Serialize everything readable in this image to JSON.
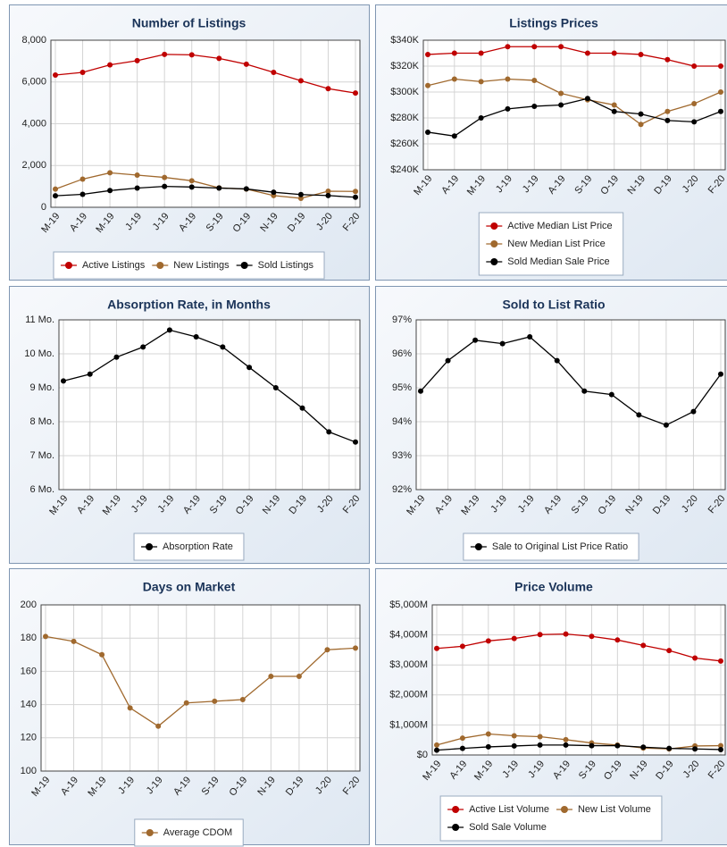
{
  "chart_data": [
    {
      "type": "line",
      "title": "Number of Listings",
      "categories": [
        "M-19",
        "A-19",
        "M-19",
        "J-19",
        "J-19",
        "A-19",
        "S-19",
        "O-19",
        "N-19",
        "D-19",
        "J-20",
        "F-20"
      ],
      "series": [
        {
          "name": "Active Listings",
          "color": "#c00000",
          "values": [
            6330,
            6460,
            6820,
            7020,
            7320,
            7300,
            7130,
            6850,
            6460,
            6060,
            5680,
            5470
          ]
        },
        {
          "name": "New Listings",
          "color": "#a0692e",
          "values": [
            870,
            1350,
            1650,
            1540,
            1430,
            1270,
            930,
            870,
            560,
            430,
            770,
            760
          ]
        },
        {
          "name": "Sold Listings",
          "color": "#000000",
          "values": [
            550,
            620,
            800,
            920,
            1000,
            970,
            920,
            880,
            720,
            610,
            560,
            480
          ]
        }
      ],
      "ylim": [
        0,
        8000
      ],
      "yticks": [
        0,
        {
          "value": 2000,
          "label": "2,000"
        },
        {
          "value": 4000,
          "label": "4,000"
        },
        {
          "value": 6000,
          "label": "6,000"
        },
        {
          "value": 8000,
          "label": "8,000"
        }
      ],
      "grid": true
    },
    {
      "type": "line",
      "title": "Listings Prices",
      "categories": [
        "M-19",
        "A-19",
        "M-19",
        "J-19",
        "J-19",
        "A-19",
        "S-19",
        "O-19",
        "N-19",
        "D-19",
        "J-20",
        "F-20"
      ],
      "series": [
        {
          "name": "Active Median List Price",
          "color": "#c00000",
          "values": [
            329000,
            330000,
            330000,
            335000,
            335000,
            335000,
            330000,
            330000,
            329000,
            325000,
            320000,
            320000
          ]
        },
        {
          "name": "New Median List Price",
          "color": "#a0692e",
          "values": [
            305000,
            310000,
            308000,
            310000,
            309000,
            299000,
            294000,
            290000,
            275000,
            285000,
            291000,
            300000
          ]
        },
        {
          "name": "Sold Median Sale Price",
          "color": "#000000",
          "values": [
            269000,
            266000,
            280000,
            287000,
            289000,
            290000,
            295000,
            285000,
            283000,
            278000,
            277000,
            285000
          ]
        }
      ],
      "ylim": [
        240000,
        340000
      ],
      "yticks": [
        {
          "value": 240000,
          "label": "$240K"
        },
        {
          "value": 260000,
          "label": "$260K"
        },
        {
          "value": 280000,
          "label": "$280K"
        },
        {
          "value": 300000,
          "label": "$300K"
        },
        {
          "value": 320000,
          "label": "$320K"
        },
        {
          "value": 340000,
          "label": "$340K"
        }
      ],
      "grid": true
    },
    {
      "type": "line",
      "title": "Absorption Rate, in Months",
      "categories": [
        "M-19",
        "A-19",
        "M-19",
        "J-19",
        "J-19",
        "A-19",
        "S-19",
        "O-19",
        "N-19",
        "D-19",
        "J-20",
        "F-20"
      ],
      "series": [
        {
          "name": "Absorption Rate",
          "color": "#000000",
          "values": [
            9.2,
            9.4,
            9.9,
            10.2,
            10.7,
            10.5,
            10.2,
            9.6,
            9.0,
            8.4,
            7.7,
            7.4
          ]
        }
      ],
      "ylim": [
        6,
        11
      ],
      "yticks": [
        {
          "value": 6,
          "label": "6 Mo."
        },
        {
          "value": 7,
          "label": "7 Mo."
        },
        {
          "value": 8,
          "label": "8 Mo."
        },
        {
          "value": 9,
          "label": "9 Mo."
        },
        {
          "value": 10,
          "label": "10 Mo."
        },
        {
          "value": 11,
          "label": "11 Mo."
        }
      ],
      "grid": true
    },
    {
      "type": "line",
      "title": "Sold to List Ratio",
      "categories": [
        "M-19",
        "A-19",
        "M-19",
        "J-19",
        "J-19",
        "A-19",
        "S-19",
        "O-19",
        "N-19",
        "D-19",
        "J-20",
        "F-20"
      ],
      "series": [
        {
          "name": "Sale to Original List Price Ratio",
          "color": "#000000",
          "values": [
            94.9,
            95.8,
            96.4,
            96.3,
            96.5,
            95.8,
            94.9,
            94.8,
            94.2,
            93.9,
            94.3,
            95.4
          ]
        }
      ],
      "ylim": [
        92,
        97
      ],
      "yticks": [
        {
          "value": 92,
          "label": "92%"
        },
        {
          "value": 93,
          "label": "93%"
        },
        {
          "value": 94,
          "label": "94%"
        },
        {
          "value": 95,
          "label": "95%"
        },
        {
          "value": 96,
          "label": "96%"
        },
        {
          "value": 97,
          "label": "97%"
        }
      ],
      "grid": true
    },
    {
      "type": "line",
      "title": "Days on Market",
      "categories": [
        "M-19",
        "A-19",
        "M-19",
        "J-19",
        "J-19",
        "A-19",
        "S-19",
        "O-19",
        "N-19",
        "D-19",
        "J-20",
        "F-20"
      ],
      "series": [
        {
          "name": "Average CDOM",
          "color": "#a0692e",
          "values": [
            181,
            178,
            170,
            138,
            127,
            141,
            142,
            143,
            157,
            157,
            173,
            174
          ]
        }
      ],
      "ylim": [
        100,
        200
      ],
      "yticks": [
        100,
        120,
        140,
        160,
        180,
        200
      ],
      "grid": true
    },
    {
      "type": "line",
      "title": "Price Volume",
      "categories": [
        "M-19",
        "A-19",
        "M-19",
        "J-19",
        "J-19",
        "A-19",
        "S-19",
        "O-19",
        "N-19",
        "D-19",
        "J-20",
        "F-20"
      ],
      "series": [
        {
          "name": "Active List Volume",
          "color": "#c00000",
          "values": [
            3550,
            3620,
            3800,
            3880,
            4010,
            4030,
            3950,
            3830,
            3650,
            3480,
            3230,
            3130
          ]
        },
        {
          "name": "New List Volume",
          "color": "#a0692e",
          "values": [
            330,
            560,
            700,
            640,
            610,
            510,
            400,
            330,
            230,
            200,
            300,
            310
          ]
        },
        {
          "name": "Sold Sale Volume",
          "color": "#000000",
          "values": [
            160,
            220,
            270,
            300,
            330,
            330,
            310,
            310,
            260,
            220,
            200,
            180
          ]
        }
      ],
      "ylim": [
        0,
        5000
      ],
      "yticks": [
        {
          "value": 0,
          "label": "$0"
        },
        {
          "value": 1000,
          "label": "$1,000M"
        },
        {
          "value": 2000,
          "label": "$2,000M"
        },
        {
          "value": 3000,
          "label": "$3,000M"
        },
        {
          "value": 4000,
          "label": "$4,000M"
        },
        {
          "value": 5000,
          "label": "$5,000M"
        }
      ],
      "grid": true
    }
  ]
}
